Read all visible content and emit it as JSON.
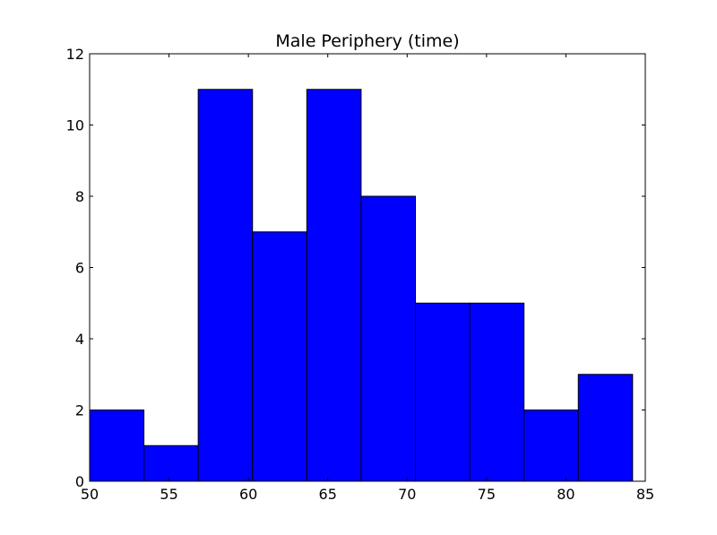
{
  "chart_data": {
    "type": "bar",
    "title": "Male Periphery (time)",
    "xlabel": "",
    "ylabel": "",
    "bin_edges": [
      50.0,
      53.42,
      56.84,
      60.26,
      63.68,
      67.1,
      70.52,
      73.94,
      77.36,
      80.78,
      84.2
    ],
    "values": [
      2,
      1,
      11,
      7,
      11,
      8,
      5,
      5,
      2,
      3
    ],
    "xlim": [
      50,
      85
    ],
    "ylim": [
      0,
      12
    ],
    "xticks": [
      50,
      55,
      60,
      65,
      70,
      75,
      80,
      85
    ],
    "yticks": [
      0,
      2,
      4,
      6,
      8,
      10,
      12
    ],
    "bar_color": "#0000ff",
    "edge_color": "#000000",
    "grid": false,
    "legend": "none"
  }
}
